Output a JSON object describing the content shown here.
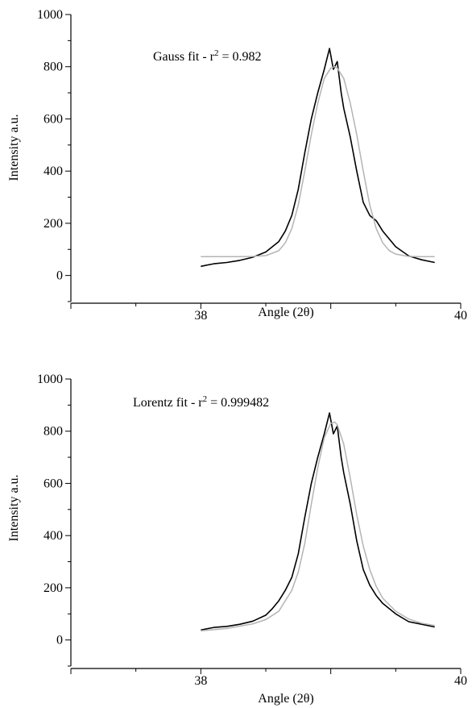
{
  "chart_data": [
    {
      "type": "line",
      "annotation_main": "Gauss fit - r",
      "annotation_sup": "2",
      "annotation_rest": " = 0.982",
      "xlabel": "Angle (2θ)",
      "ylabel": "Intensity a.u.",
      "xlim": [
        37,
        40
      ],
      "ylim": [
        -100,
        1000
      ],
      "xticks": [
        "38",
        "40"
      ],
      "yticks": [
        "0",
        "200",
        "400",
        "600",
        "800",
        "1000"
      ],
      "grid": false,
      "series": [
        {
          "color": "#000000",
          "x": [
            38.0,
            38.1,
            38.2,
            38.3,
            38.4,
            38.5,
            38.55,
            38.6,
            38.65,
            38.7,
            38.75,
            38.8,
            38.85,
            38.9,
            38.95,
            38.99,
            39.02,
            39.05,
            39.08,
            39.1,
            39.15,
            39.2,
            39.25,
            39.3,
            39.35,
            39.4,
            39.5,
            39.6,
            39.7,
            39.8
          ],
          "y": [
            35,
            45,
            50,
            58,
            70,
            90,
            110,
            130,
            170,
            230,
            330,
            470,
            600,
            700,
            790,
            870,
            790,
            820,
            700,
            640,
            530,
            400,
            280,
            230,
            210,
            170,
            110,
            75,
            60,
            50
          ]
        },
        {
          "color": "#b4b4b4",
          "x": [
            38.0,
            38.1,
            38.2,
            38.3,
            38.4,
            38.5,
            38.6,
            38.65,
            38.7,
            38.75,
            38.8,
            38.85,
            38.9,
            38.95,
            39.0,
            39.03,
            39.05,
            39.1,
            39.15,
            39.2,
            39.25,
            39.3,
            39.35,
            39.4,
            39.45,
            39.5,
            39.6,
            39.7,
            39.8
          ],
          "y": [
            72,
            72,
            72,
            72,
            73,
            76,
            95,
            125,
            180,
            270,
            400,
            540,
            660,
            755,
            795,
            800,
            795,
            755,
            660,
            540,
            400,
            270,
            180,
            125,
            95,
            82,
            73,
            72,
            72
          ]
        }
      ]
    },
    {
      "type": "line",
      "annotation_main": "Lorentz fit - r",
      "annotation_sup": "2",
      "annotation_rest": " = 0.999482",
      "xlabel": "Angle (2θ)",
      "ylabel": "Intensity a.u.",
      "xlim": [
        37,
        40
      ],
      "ylim": [
        -100,
        1000
      ],
      "xticks": [
        "38",
        "40"
      ],
      "yticks": [
        "0",
        "200",
        "400",
        "600",
        "800",
        "1000"
      ],
      "grid": false,
      "series": [
        {
          "color": "#000000",
          "x": [
            38.0,
            38.1,
            38.2,
            38.3,
            38.4,
            38.5,
            38.55,
            38.6,
            38.65,
            38.7,
            38.75,
            38.8,
            38.85,
            38.9,
            38.95,
            38.99,
            39.02,
            39.05,
            39.08,
            39.1,
            39.15,
            39.2,
            39.25,
            39.3,
            39.35,
            39.4,
            39.5,
            39.6,
            39.7,
            39.8
          ],
          "y": [
            38,
            48,
            52,
            60,
            72,
            95,
            120,
            150,
            190,
            240,
            330,
            470,
            600,
            700,
            790,
            870,
            790,
            820,
            700,
            640,
            520,
            380,
            270,
            210,
            170,
            140,
            100,
            70,
            60,
            50
          ]
        },
        {
          "color": "#b4b4b4",
          "x": [
            38.0,
            38.2,
            38.4,
            38.5,
            38.6,
            38.7,
            38.75,
            38.8,
            38.85,
            38.9,
            38.95,
            39.0,
            39.03,
            39.05,
            39.1,
            39.15,
            39.2,
            39.25,
            39.3,
            39.35,
            39.4,
            39.5,
            39.6,
            39.7,
            39.8
          ],
          "y": [
            35,
            44,
            62,
            78,
            110,
            190,
            260,
            370,
            520,
            660,
            775,
            830,
            835,
            825,
            750,
            620,
            480,
            360,
            270,
            205,
            160,
            110,
            80,
            64,
            55
          ]
        }
      ]
    }
  ]
}
